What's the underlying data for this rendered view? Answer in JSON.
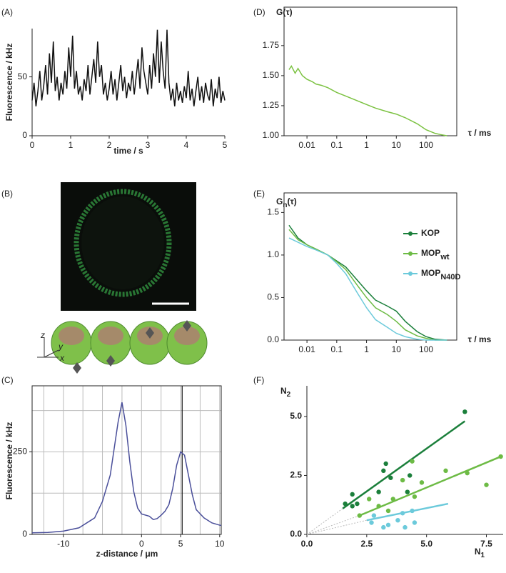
{
  "chart_data": [
    {
      "type": "line",
      "panel_label": "(A)",
      "xlabel": "time / s",
      "ylabel": "Fluorescence / kHz",
      "color": "#111111",
      "xlim": [
        0,
        5
      ],
      "ylim": [
        0,
        91
      ],
      "xticks": [
        0,
        1,
        2,
        3,
        4,
        5
      ],
      "yticks": [
        0,
        50
      ],
      "x": [
        0,
        0.05,
        0.1,
        0.15,
        0.2,
        0.25,
        0.3,
        0.35,
        0.4,
        0.45,
        0.5,
        0.55,
        0.6,
        0.65,
        0.7,
        0.75,
        0.8,
        0.85,
        0.9,
        0.95,
        1,
        1.05,
        1.1,
        1.15,
        1.2,
        1.25,
        1.3,
        1.35,
        1.4,
        1.45,
        1.5,
        1.55,
        1.6,
        1.65,
        1.7,
        1.75,
        1.8,
        1.85,
        1.9,
        1.95,
        2,
        2.05,
        2.1,
        2.15,
        2.2,
        2.25,
        2.3,
        2.35,
        2.4,
        2.45,
        2.5,
        2.55,
        2.6,
        2.65,
        2.7,
        2.75,
        2.8,
        2.85,
        2.9,
        2.95,
        3,
        3.05,
        3.1,
        3.15,
        3.2,
        3.25,
        3.3,
        3.35,
        3.4,
        3.45,
        3.5,
        3.55,
        3.6,
        3.65,
        3.7,
        3.75,
        3.8,
        3.85,
        3.9,
        3.95,
        4,
        4.05,
        4.1,
        4.15,
        4.2,
        4.25,
        4.3,
        4.35,
        4.4,
        4.45,
        4.5,
        4.55,
        4.6,
        4.65,
        4.7,
        4.75,
        4.8,
        4.85,
        4.9,
        4.95,
        5
      ],
      "values": [
        30,
        45,
        25,
        38,
        55,
        30,
        42,
        60,
        35,
        70,
        45,
        80,
        38,
        50,
        30,
        45,
        35,
        55,
        40,
        75,
        50,
        85,
        40,
        55,
        35,
        42,
        30,
        48,
        38,
        60,
        35,
        50,
        65,
        45,
        80,
        50,
        60,
        35,
        45,
        30,
        40,
        55,
        35,
        48,
        30,
        45,
        60,
        38,
        50,
        32,
        45,
        38,
        55,
        35,
        50,
        65,
        40,
        75,
        55,
        45,
        35,
        60,
        40,
        70,
        50,
        90,
        45,
        80,
        55,
        40,
        90,
        45,
        30,
        40,
        25,
        45,
        30,
        38,
        28,
        42,
        32,
        55,
        30,
        40,
        25,
        38,
        50,
        30,
        42,
        28,
        45,
        35,
        30,
        48,
        25,
        40,
        32,
        50,
        28,
        38,
        30
      ]
    },
    {
      "type": "line",
      "panel_label": "(C)",
      "xlabel": "z-distance / μm",
      "ylabel": "Fluorescence / kHz",
      "color": "#4a4f9a",
      "xlim": [
        -14,
        10.2
      ],
      "ylim": [
        0,
        450
      ],
      "xticks": [
        -10,
        0,
        5,
        10
      ],
      "yticks": [
        0,
        250
      ],
      "grid": true,
      "xgrid": [
        -12.5,
        -10,
        -7.5,
        -5,
        -2.5,
        0,
        2.5,
        5,
        7.5,
        10
      ],
      "ygrid": [
        125,
        250,
        375
      ],
      "vline": 5.2,
      "x": [
        -14,
        -12,
        -10,
        -8,
        -6,
        -5,
        -4,
        -3.5,
        -3,
        -2.5,
        -2,
        -1.5,
        -1,
        -0.5,
        0,
        1,
        1.5,
        2,
        2.5,
        3,
        3.5,
        4,
        4.5,
        5,
        5.5,
        6,
        6.5,
        7,
        8,
        9,
        10,
        10.2
      ],
      "values": [
        5,
        6,
        10,
        20,
        50,
        100,
        180,
        260,
        340,
        400,
        330,
        220,
        130,
        80,
        62,
        55,
        45,
        48,
        58,
        70,
        90,
        140,
        210,
        250,
        240,
        180,
        120,
        75,
        50,
        35,
        28,
        27
      ]
    },
    {
      "type": "line",
      "panel_label": "(D)",
      "xlabel": "τ / ms",
      "ylabel": "G(τ)",
      "color": "#7cc242",
      "xscale": "log",
      "xlim": [
        0.0017,
        1070
      ],
      "ylim": [
        1,
        2.07
      ],
      "xticks": [
        0.01,
        0.1,
        1,
        10,
        100
      ],
      "yticks": [
        {
          "value": 1,
          "label": "1.00"
        },
        {
          "value": 1.25,
          "label": "1.25"
        },
        {
          "value": 1.5,
          "label": "1.50"
        },
        {
          "value": 1.75,
          "label": "1.75"
        }
      ],
      "x": [
        0.0025,
        0.003,
        0.004,
        0.005,
        0.007,
        0.01,
        0.015,
        0.02,
        0.03,
        0.05,
        0.1,
        0.2,
        0.5,
        1,
        2,
        5,
        10,
        20,
        50,
        100,
        200,
        300,
        500
      ],
      "values": [
        1.55,
        1.58,
        1.52,
        1.56,
        1.5,
        1.47,
        1.45,
        1.43,
        1.42,
        1.4,
        1.36,
        1.33,
        1.29,
        1.26,
        1.23,
        1.2,
        1.18,
        1.15,
        1.1,
        1.05,
        1.02,
        1.01,
        1
      ]
    },
    {
      "type": "line",
      "panel_label": "(E)",
      "xlabel": "τ / ms",
      "ylabel": [
        "G",
        "n",
        "(τ)"
      ],
      "xscale": "log",
      "xlim": [
        0.0017,
        1070
      ],
      "ylim": [
        0,
        1.73
      ],
      "xticks": [
        0.01,
        0.1,
        1,
        10,
        100
      ],
      "yticks": [
        {
          "value": 0,
          "label": "0.0"
        },
        {
          "value": 0.5,
          "label": "0.5"
        },
        {
          "value": 1,
          "label": "1.0"
        },
        {
          "value": 1.5,
          "label": "1.5"
        }
      ],
      "x": [
        0.0025,
        0.005,
        0.01,
        0.02,
        0.05,
        0.1,
        0.2,
        0.5,
        1,
        2,
        5,
        10,
        20,
        50,
        100,
        200,
        500
      ],
      "series": [
        {
          "name": "KOP",
          "color": "#1b7f3b",
          "values": [
            1.35,
            1.2,
            1.12,
            1.07,
            1,
            0.93,
            0.86,
            0.7,
            0.58,
            0.47,
            0.4,
            0.34,
            0.22,
            0.1,
            0.04,
            0.01,
            0
          ]
        },
        {
          "name": "MOP",
          "name_sub": "wt",
          "color": "#6dbb45",
          "values": [
            1.3,
            1.18,
            1.12,
            1.07,
            1,
            0.92,
            0.83,
            0.64,
            0.5,
            0.38,
            0.3,
            0.22,
            0.12,
            0.05,
            0.02,
            0,
            0
          ]
        },
        {
          "name": "MOP",
          "name_sub": "N40D",
          "color": "#6ccadb",
          "values": [
            1.2,
            1.15,
            1.1,
            1.06,
            1,
            0.9,
            0.78,
            0.55,
            0.38,
            0.24,
            0.15,
            0.08,
            0.04,
            0.01,
            0,
            0,
            0
          ]
        }
      ]
    },
    {
      "type": "scatter",
      "panel_label": "(F)",
      "xlabel": [
        "N",
        "1"
      ],
      "ylabel": [
        "N",
        "2"
      ],
      "xlim": [
        0,
        8.2
      ],
      "ylim": [
        0,
        6.3
      ],
      "xticks": [
        {
          "value": 0,
          "label": "0.0"
        },
        {
          "value": 2.5,
          "label": "2.5"
        },
        {
          "value": 5,
          "label": "5.0"
        },
        {
          "value": 7.5,
          "label": "7.5"
        }
      ],
      "yticks": [
        {
          "value": 0,
          "label": "0.0"
        },
        {
          "value": 2.5,
          "label": "2.5"
        },
        {
          "value": 5,
          "label": "5.0"
        }
      ],
      "series": [
        {
          "color": "#1b7f3b",
          "x": [
            1.6,
            1.9,
            1.9,
            2.1,
            3.2,
            3.3,
            3.5,
            4.2,
            4.3,
            6.6,
            3.0
          ],
          "values": [
            1.3,
            1.2,
            1.7,
            1.3,
            2.7,
            3.0,
            2.4,
            1.8,
            2.5,
            5.2,
            1.8
          ],
          "fit": [
            [
              1.5,
              1.1
            ],
            [
              6.6,
              4.8
            ]
          ]
        },
        {
          "color": "#6dbb45",
          "x": [
            2.2,
            2.6,
            3.0,
            3.4,
            3.6,
            4.0,
            4.5,
            4.4,
            4.8,
            5.8,
            6.7,
            7.5,
            8.1
          ],
          "values": [
            0.8,
            1.5,
            1.2,
            1.0,
            1.5,
            2.3,
            1.6,
            3.1,
            2.2,
            2.7,
            2.6,
            2.1,
            3.3
          ],
          "fit": [
            [
              2.2,
              0.8
            ],
            [
              8.1,
              3.3
            ]
          ]
        },
        {
          "color": "#6ccadb",
          "x": [
            2.7,
            3.2,
            3.4,
            3.8,
            4.0,
            4.1,
            4.4,
            4.5,
            2.8
          ],
          "values": [
            0.5,
            0.3,
            0.4,
            0.6,
            0.9,
            0.3,
            1.0,
            0.5,
            0.8
          ],
          "fit": [
            [
              2.5,
              0.6
            ],
            [
              5.9,
              1.3
            ]
          ]
        }
      ]
    }
  ],
  "image_panel": {
    "panel_label": "(B)",
    "axis_labels": [
      "z",
      "y",
      "x"
    ]
  }
}
